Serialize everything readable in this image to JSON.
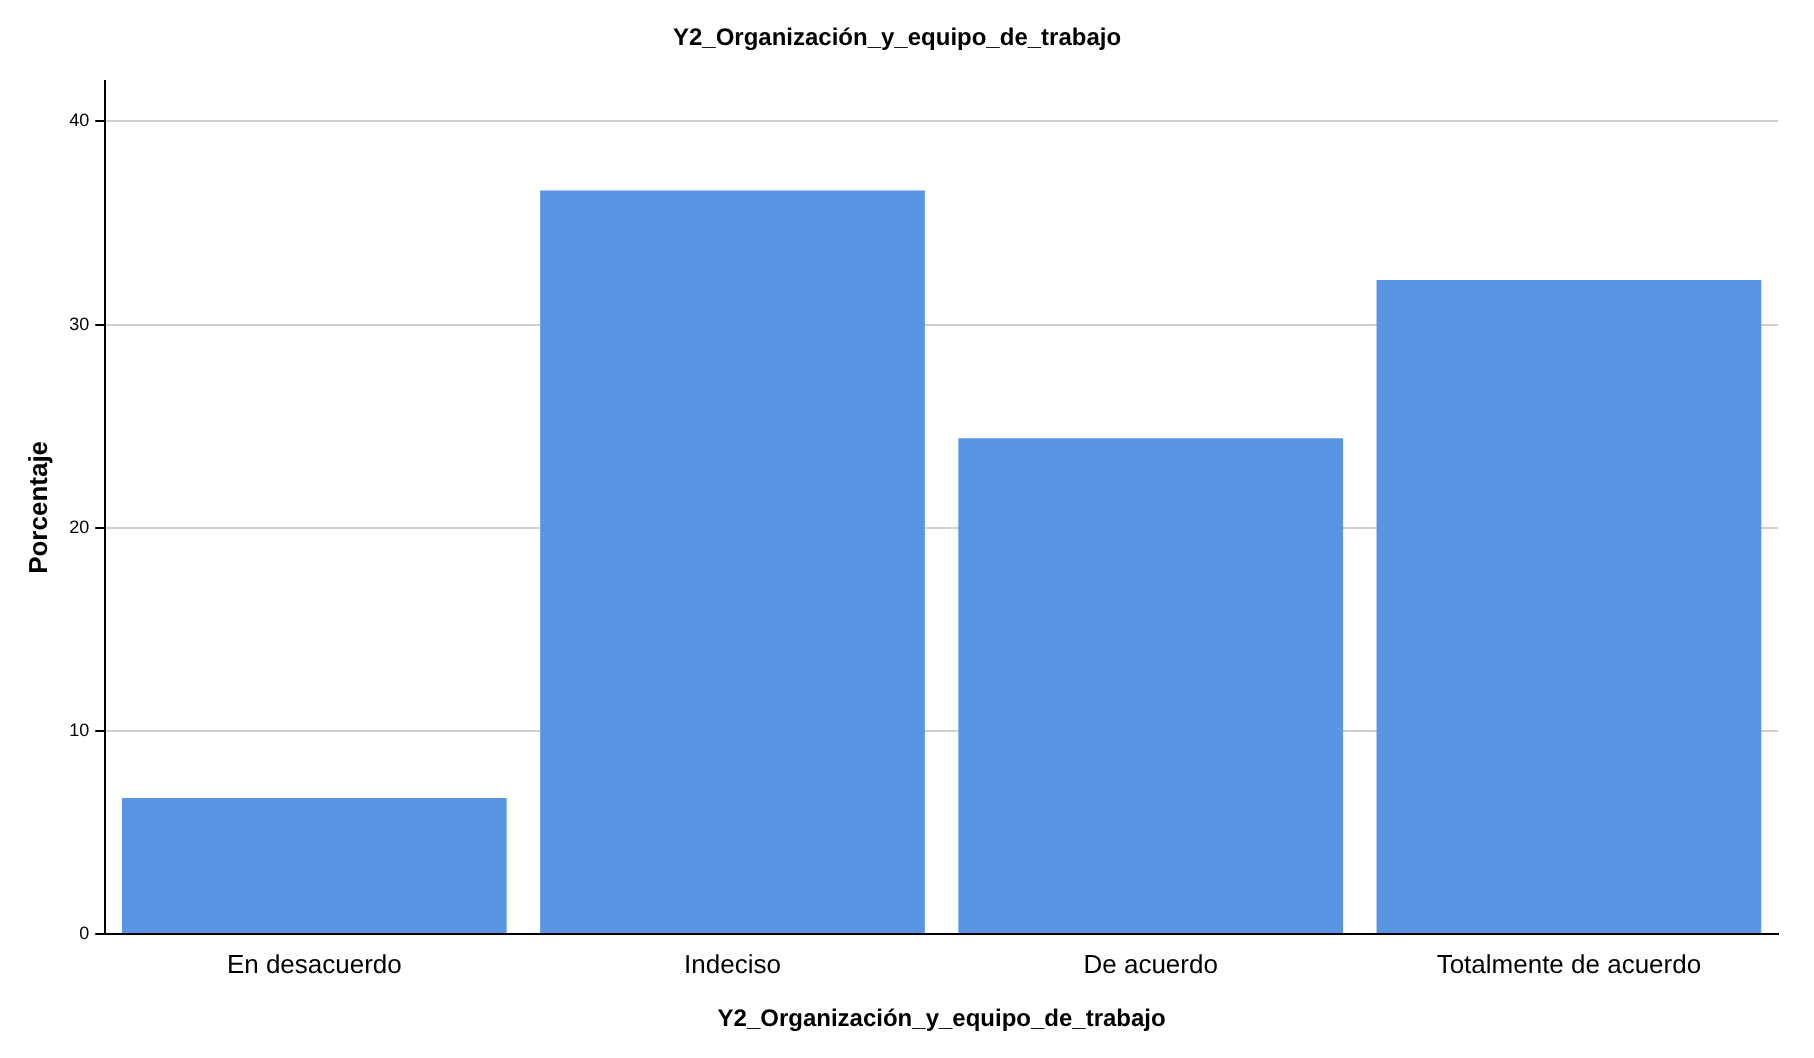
{
  "chart_data": {
    "type": "bar",
    "title": "Y2_Organización_y_equipo_de_trabajo",
    "xlabel": "Y2_Organización_y_equipo_de_trabajo",
    "ylabel": "Porcentaje",
    "categories": [
      "En desacuerdo",
      "Indeciso",
      "De acuerdo",
      "Totalmente de acuerdo"
    ],
    "values": [
      6.7,
      36.6,
      24.4,
      32.2
    ],
    "color": "#5a95e3",
    "ylim": [
      0,
      42
    ],
    "yticks": [
      0,
      10,
      20,
      30,
      40
    ],
    "grid": "y",
    "legend": false
  }
}
